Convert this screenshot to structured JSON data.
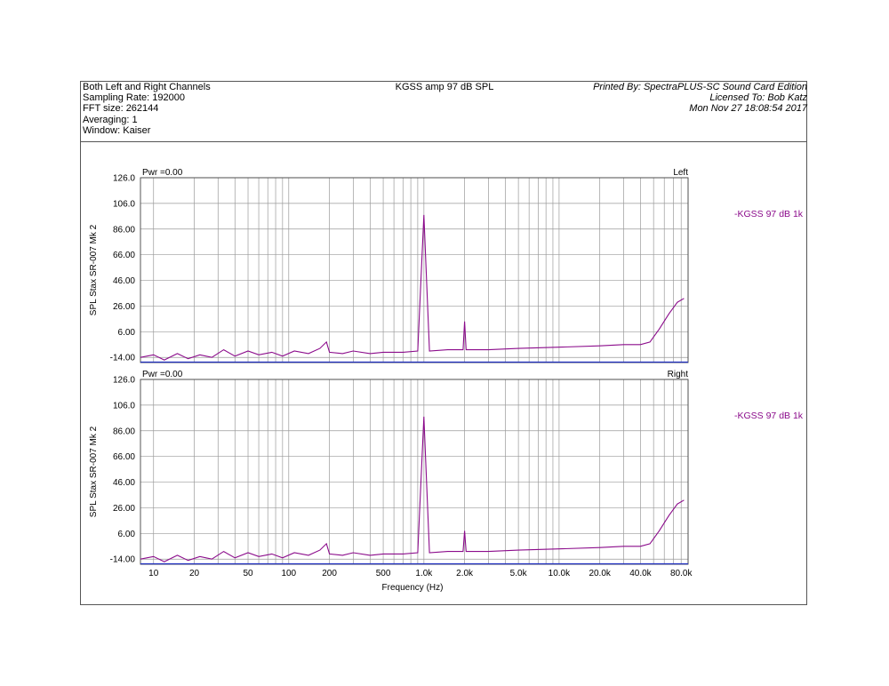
{
  "header": {
    "left_lines": [
      "Both Left and Right Channels",
      "Sampling Rate: 192000",
      "FFT size: 262144",
      "Averaging: 1",
      "Window: Kaiser"
    ],
    "center_title": "KGSS amp 97 dB SPL",
    "right_lines": [
      "Printed By: SpectraPLUS-SC Sound Card Edition",
      "Licensed To: Bob Katz",
      "Mon Nov 27 18:08:54 2017"
    ]
  },
  "colors": {
    "trace": "#8b0b8b",
    "grid": "#9a9a9a",
    "baseline": "#1f2fbf",
    "legend_text": "#8b0b8b"
  },
  "chart_data": [
    {
      "type": "line",
      "channel_label": "Left",
      "pwr_label": "Pwr =0.00",
      "ylabel": "SPL Stax SR-007 Mk 2",
      "xlabel": "",
      "x_scale": "log",
      "xlim": [
        8,
        90000
      ],
      "ylim": [
        -18,
        126
      ],
      "y_ticks": [
        "126.0",
        "106.0",
        "86.00",
        "66.00",
        "46.00",
        "26.00",
        "6.00",
        "-14.00"
      ],
      "legend": "KGSS 97 dB 1k",
      "series": [
        {
          "name": "KGSS 97 dB 1k",
          "points": [
            [
              8,
              -14
            ],
            [
              10,
              -12
            ],
            [
              12,
              -16
            ],
            [
              15,
              -11
            ],
            [
              18,
              -15
            ],
            [
              22,
              -12
            ],
            [
              27,
              -14
            ],
            [
              33,
              -8
            ],
            [
              40,
              -13
            ],
            [
              50,
              -9
            ],
            [
              60,
              -12
            ],
            [
              75,
              -10
            ],
            [
              90,
              -13
            ],
            [
              110,
              -9
            ],
            [
              140,
              -11
            ],
            [
              170,
              -7
            ],
            [
              190,
              -2
            ],
            [
              200,
              -10
            ],
            [
              250,
              -11
            ],
            [
              300,
              -9
            ],
            [
              400,
              -11
            ],
            [
              500,
              -10
            ],
            [
              700,
              -10
            ],
            [
              900,
              -9
            ],
            [
              1000,
              97
            ],
            [
              1100,
              -9
            ],
            [
              1500,
              -8
            ],
            [
              1950,
              -8
            ],
            [
              2000,
              14
            ],
            [
              2050,
              -8
            ],
            [
              3000,
              -8
            ],
            [
              5000,
              -7
            ],
            [
              10000,
              -6
            ],
            [
              20000,
              -5
            ],
            [
              30000,
              -4
            ],
            [
              40000,
              -4
            ],
            [
              47000,
              -2
            ],
            [
              55000,
              8
            ],
            [
              65000,
              20
            ],
            [
              75000,
              29
            ],
            [
              84000,
              32
            ]
          ]
        }
      ]
    },
    {
      "type": "line",
      "channel_label": "Right",
      "pwr_label": "Pwr =0.00",
      "ylabel": "SPL Stax SR-007 Mk 2",
      "xlabel": "Frequency (Hz)",
      "x_scale": "log",
      "xlim": [
        8,
        90000
      ],
      "ylim": [
        -18,
        126
      ],
      "y_ticks": [
        "126.0",
        "106.0",
        "86.00",
        "66.00",
        "46.00",
        "26.00",
        "6.00",
        "-14.00"
      ],
      "x_ticks": [
        {
          "v": 10,
          "label": "10"
        },
        {
          "v": 20,
          "label": "20"
        },
        {
          "v": 50,
          "label": "50"
        },
        {
          "v": 100,
          "label": "100"
        },
        {
          "v": 200,
          "label": "200"
        },
        {
          "v": 500,
          "label": "500"
        },
        {
          "v": 1000,
          "label": "1.0k"
        },
        {
          "v": 2000,
          "label": "2.0k"
        },
        {
          "v": 5000,
          "label": "5.0k"
        },
        {
          "v": 10000,
          "label": "10.0k"
        },
        {
          "v": 20000,
          "label": "20.0k"
        },
        {
          "v": 40000,
          "label": "40.0k"
        },
        {
          "v": 80000,
          "label": "80.0k"
        }
      ],
      "legend": "KGSS 97 dB 1k",
      "series": [
        {
          "name": "KGSS 97 dB 1k",
          "points": [
            [
              8,
              -14
            ],
            [
              10,
              -12
            ],
            [
              12,
              -16
            ],
            [
              15,
              -11
            ],
            [
              18,
              -15
            ],
            [
              22,
              -12
            ],
            [
              27,
              -14
            ],
            [
              33,
              -8
            ],
            [
              40,
              -13
            ],
            [
              50,
              -9
            ],
            [
              60,
              -12
            ],
            [
              75,
              -10
            ],
            [
              90,
              -13
            ],
            [
              110,
              -9
            ],
            [
              140,
              -11
            ],
            [
              170,
              -7
            ],
            [
              190,
              -2
            ],
            [
              200,
              -10
            ],
            [
              250,
              -11
            ],
            [
              300,
              -9
            ],
            [
              400,
              -11
            ],
            [
              500,
              -10
            ],
            [
              700,
              -10
            ],
            [
              900,
              -9
            ],
            [
              1000,
              97
            ],
            [
              1100,
              -9
            ],
            [
              1500,
              -8
            ],
            [
              1950,
              -8
            ],
            [
              2000,
              8
            ],
            [
              2050,
              -8
            ],
            [
              3000,
              -8
            ],
            [
              5000,
              -7
            ],
            [
              10000,
              -6
            ],
            [
              20000,
              -5
            ],
            [
              30000,
              -4
            ],
            [
              40000,
              -4
            ],
            [
              47000,
              -2
            ],
            [
              55000,
              8
            ],
            [
              65000,
              20
            ],
            [
              75000,
              29
            ],
            [
              84000,
              32
            ]
          ]
        }
      ]
    }
  ]
}
